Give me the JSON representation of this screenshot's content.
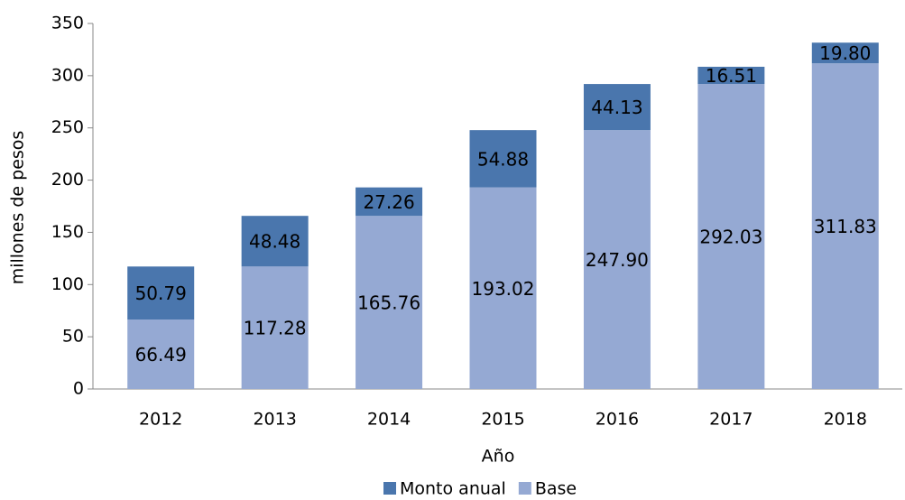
{
  "chart_data": {
    "type": "stacked_bar",
    "x_label": "Año",
    "y_label": "millones de pesos",
    "categories": [
      "2012",
      "2013",
      "2014",
      "2015",
      "2016",
      "2017",
      "2018"
    ],
    "series": [
      {
        "name": "Monto anual",
        "color": "#4a76ad",
        "values": [
          50.79,
          48.48,
          27.26,
          54.88,
          44.13,
          16.51,
          19.8
        ],
        "value_labels": [
          "50.79",
          "48.48",
          "27.26",
          "54.88",
          "44.13",
          "16.51",
          "19.80"
        ]
      },
      {
        "name": "Base",
        "color": "#95a9d3",
        "values": [
          66.49,
          117.28,
          165.76,
          193.02,
          247.9,
          292.03,
          311.83
        ],
        "value_labels": [
          "66.49",
          "117.28",
          "165.76",
          "193.02",
          "247.90",
          "292.03",
          "311.83"
        ]
      }
    ],
    "ylim": [
      0,
      350
    ],
    "yticks": [
      0,
      50,
      100,
      150,
      200,
      250,
      300,
      350
    ],
    "legend": "bottom"
  }
}
